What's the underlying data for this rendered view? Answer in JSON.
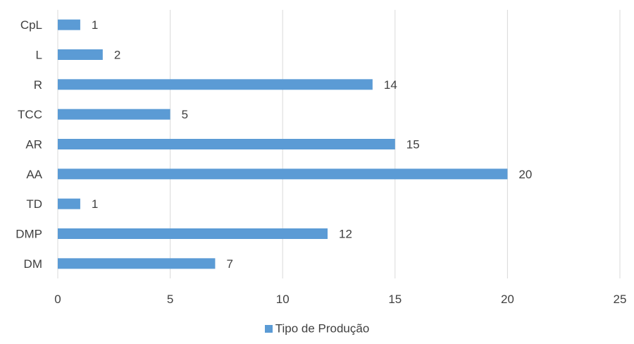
{
  "chart_data": {
    "type": "bar",
    "orientation": "horizontal",
    "categories": [
      "CpL",
      "L",
      "R",
      "TCC",
      "AR",
      "AA",
      "TD",
      "DMP",
      "DM"
    ],
    "series": [
      {
        "name": "Tipo de Produção",
        "color": "#5b9bd5",
        "values": [
          1,
          2,
          14,
          5,
          15,
          20,
          1,
          12,
          7
        ]
      }
    ],
    "xlim": [
      0,
      25
    ],
    "xticks": [
      0,
      5,
      10,
      15,
      20,
      25
    ],
    "grid": "vertical",
    "legend": "bottom-center",
    "data_labels": true
  }
}
